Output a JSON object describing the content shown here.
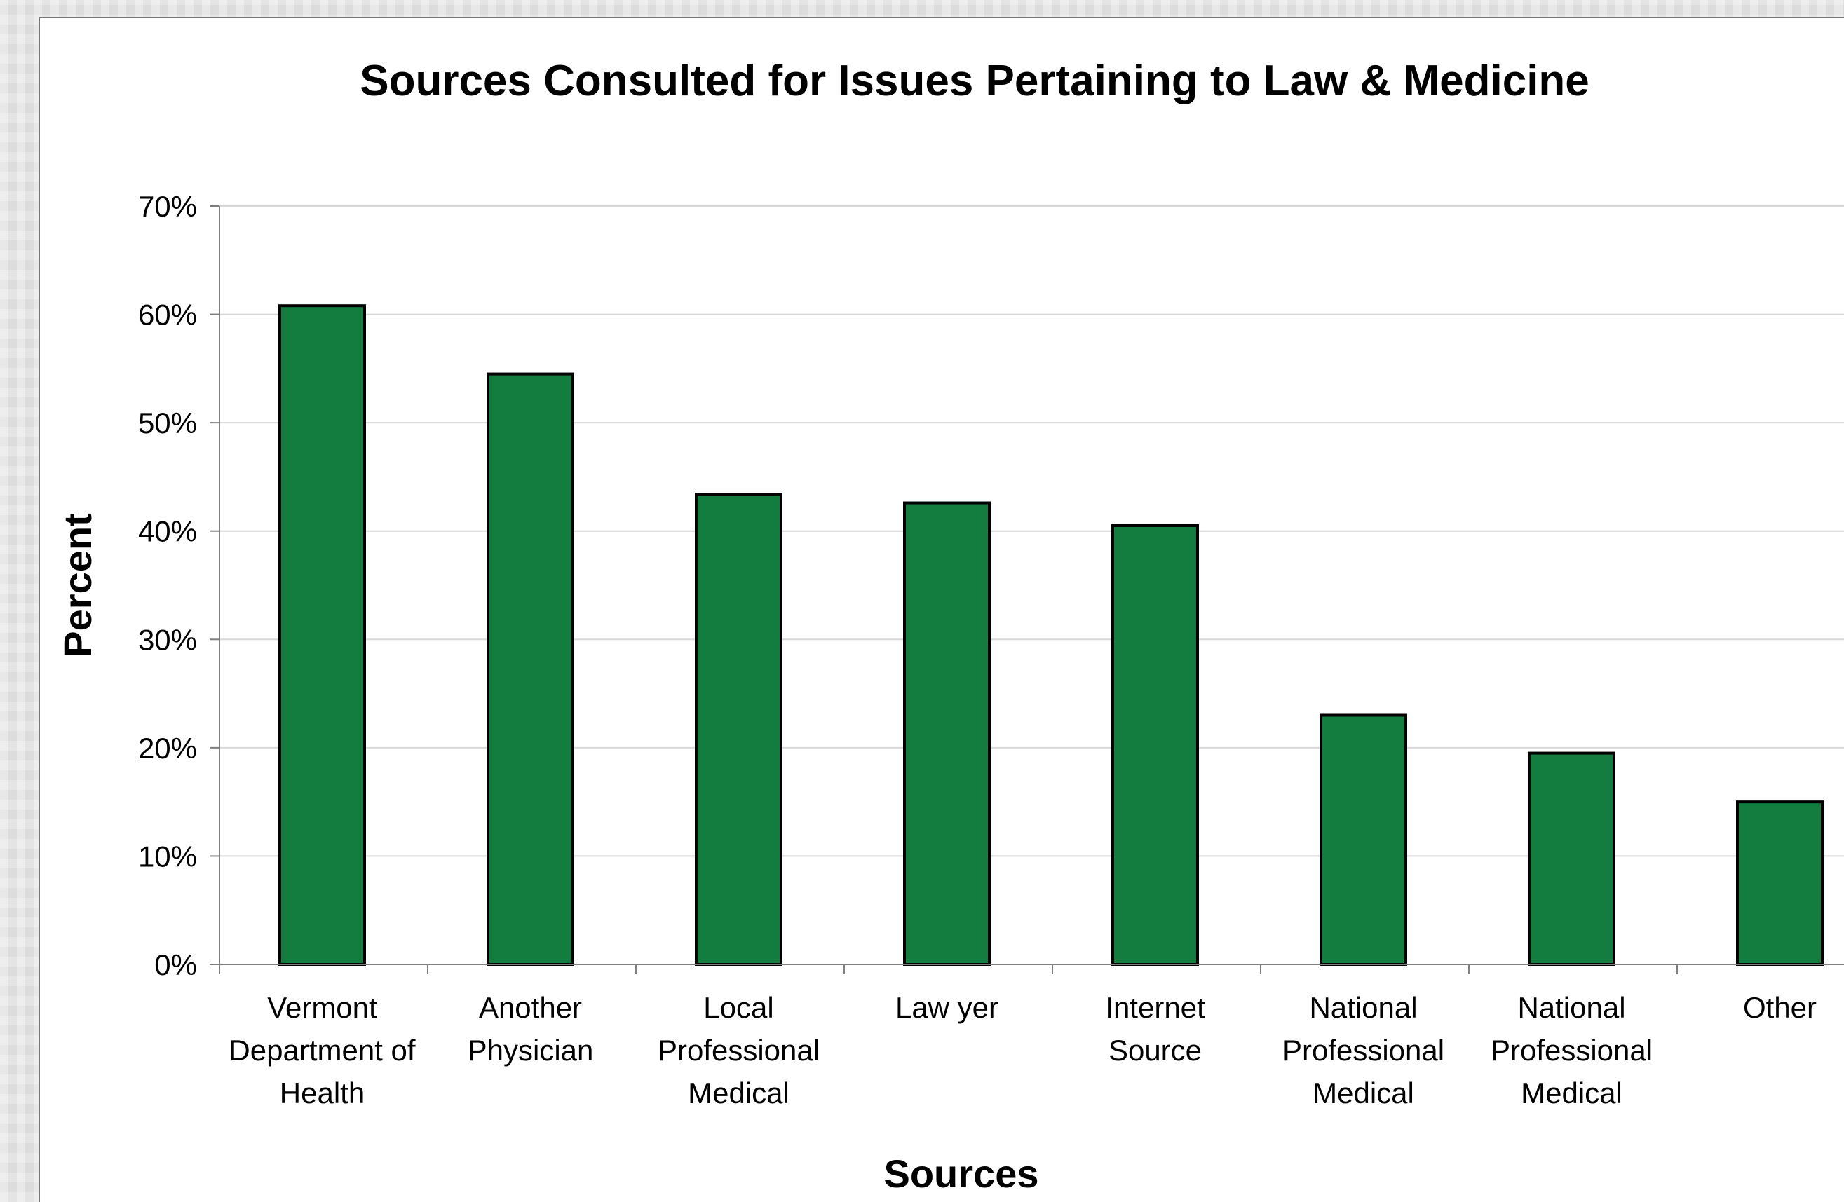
{
  "chart_data": {
    "type": "bar",
    "title": "Sources Consulted for Issues Pertaining to Law & Medicine",
    "xlabel": "Sources",
    "ylabel": "Percent",
    "ylim": [
      0,
      70
    ],
    "yticks": [
      "0%",
      "10%",
      "20%",
      "30%",
      "40%",
      "50%",
      "60%",
      "70%"
    ],
    "grid": true,
    "legend": "none",
    "bar_color": "#137d3f",
    "categories": [
      [
        "Vermont",
        "Department of",
        "Health"
      ],
      [
        "Another",
        "Physician"
      ],
      [
        "Local",
        "Professional",
        "Medical"
      ],
      [
        "Law yer"
      ],
      [
        "Internet",
        "Source"
      ],
      [
        "National",
        "Professional",
        "Medical"
      ],
      [
        "National",
        "Professional",
        "Medical"
      ],
      [
        "Other"
      ]
    ],
    "values": [
      60.8,
      54.5,
      43.4,
      42.6,
      40.5,
      23.0,
      19.5,
      15.0
    ]
  }
}
